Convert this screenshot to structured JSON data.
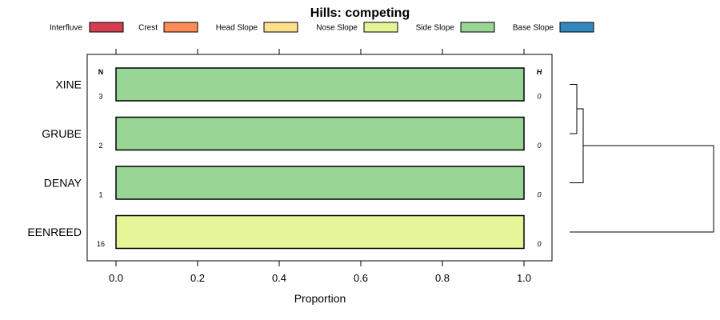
{
  "chart_data": {
    "type": "bar",
    "orientation": "horizontal",
    "stacked": true,
    "title": "Hills: competing",
    "xlabel": "Proportion",
    "xlim": [
      0,
      1
    ],
    "xticks": [
      "0.0",
      "0.2",
      "0.4",
      "0.6",
      "0.8",
      "1.0"
    ],
    "categories": [
      "XINE",
      "GRUBE",
      "DENAY",
      "EENREED"
    ],
    "n_header": "N",
    "h_header": "H",
    "n_values": [
      "3",
      "2",
      "1",
      "16"
    ],
    "h_values": [
      "0",
      "0",
      "0",
      "0"
    ],
    "legend_position": "top",
    "series": [
      {
        "name": "Interfluve",
        "color": "#D53E4F",
        "values": [
          0,
          0,
          0,
          0
        ]
      },
      {
        "name": "Crest",
        "color": "#FC8D59",
        "values": [
          0,
          0,
          0,
          0
        ]
      },
      {
        "name": "Head Slope",
        "color": "#FEE08B",
        "values": [
          0,
          0,
          0,
          0
        ]
      },
      {
        "name": "Nose Slope",
        "color": "#E6F598",
        "values": [
          0,
          0,
          0,
          1
        ]
      },
      {
        "name": "Side Slope",
        "color": "#99D594",
        "values": [
          1,
          1,
          1,
          0
        ]
      },
      {
        "name": "Base Slope",
        "color": "#3288BD",
        "values": [
          0,
          0,
          0,
          0
        ]
      }
    ],
    "dendrogram": {
      "merges": [
        {
          "left": "XINE",
          "right": "GRUBE"
        },
        {
          "left": [
            "XINE",
            "GRUBE"
          ],
          "right": "DENAY"
        },
        {
          "left": [
            "XINE",
            "GRUBE",
            "DENAY"
          ],
          "right": "EENREED"
        }
      ]
    }
  }
}
